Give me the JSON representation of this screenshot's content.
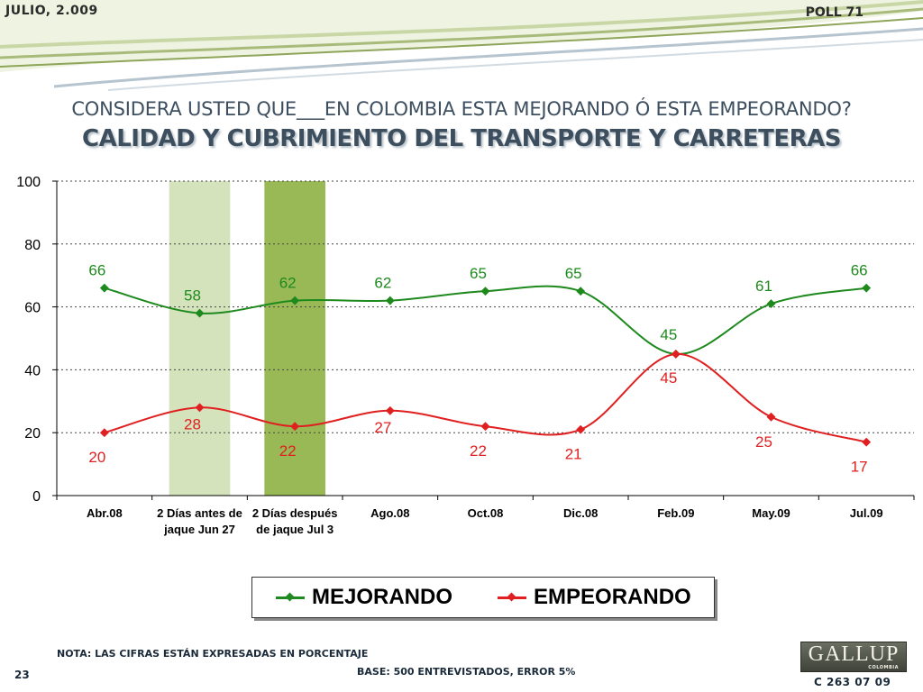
{
  "header": {
    "date": "JULIO, 2.009",
    "poll": "POLL 71"
  },
  "question": "CONSIDERA USTED QUE___EN COLOMBIA ESTA MEJORANDO Ó ESTA EMPEORANDO?",
  "subtitle": "CALIDAD Y CUBRIMIENTO DEL TRANSPORTE Y CARRETERAS",
  "colors": {
    "mejorando": "#1e8a1e",
    "empeorando": "#e02020",
    "highlight_light": "#d5e3bd",
    "highlight_dark": "#98b955",
    "swoosh": "#8a9a5a"
  },
  "chart_data": {
    "type": "line",
    "categories": [
      "Abr.08",
      "2 Días antes de jaque Jun 27",
      "2 Días después de jaque Jul 3",
      "Ago.08",
      "Oct.08",
      "Dic.08",
      "Feb.09",
      "May.09",
      "Jul.09"
    ],
    "category_lines": [
      [
        "Abr.08"
      ],
      [
        "2 Días antes de",
        "jaque Jun 27"
      ],
      [
        "2 Días después",
        "de jaque Jul 3"
      ],
      [
        "Ago.08"
      ],
      [
        "Oct.08"
      ],
      [
        "Dic.08"
      ],
      [
        "Feb.09"
      ],
      [
        "May.09"
      ],
      [
        "Jul.09"
      ]
    ],
    "series": [
      {
        "name": "MEJORANDO",
        "values": [
          66,
          58,
          62,
          62,
          65,
          65,
          45,
          61,
          66
        ]
      },
      {
        "name": "EMPEORANDO",
        "values": [
          20,
          28,
          22,
          27,
          22,
          21,
          45,
          25,
          17
        ]
      }
    ],
    "yticks": [
      0,
      20,
      40,
      60,
      80,
      100
    ],
    "ylim": [
      0,
      100
    ],
    "grid": "horizontal-dotted",
    "highlighted_categories": [
      1,
      2
    ],
    "legend_position": "bottom"
  },
  "legend": {
    "mejorando": "MEJORANDO",
    "empeorando": "EMPEORANDO"
  },
  "footer": {
    "nota": "NOTA: LAS CIFRAS ESTÁN EXPRESADAS EN PORCENTAJE",
    "base": "BASE: 500 ENTREVISTADOS, ERROR 5%",
    "page": "23",
    "code": "C 263 07 09",
    "logo": "GALLUP",
    "logo_sub": "COLOMBIA"
  }
}
